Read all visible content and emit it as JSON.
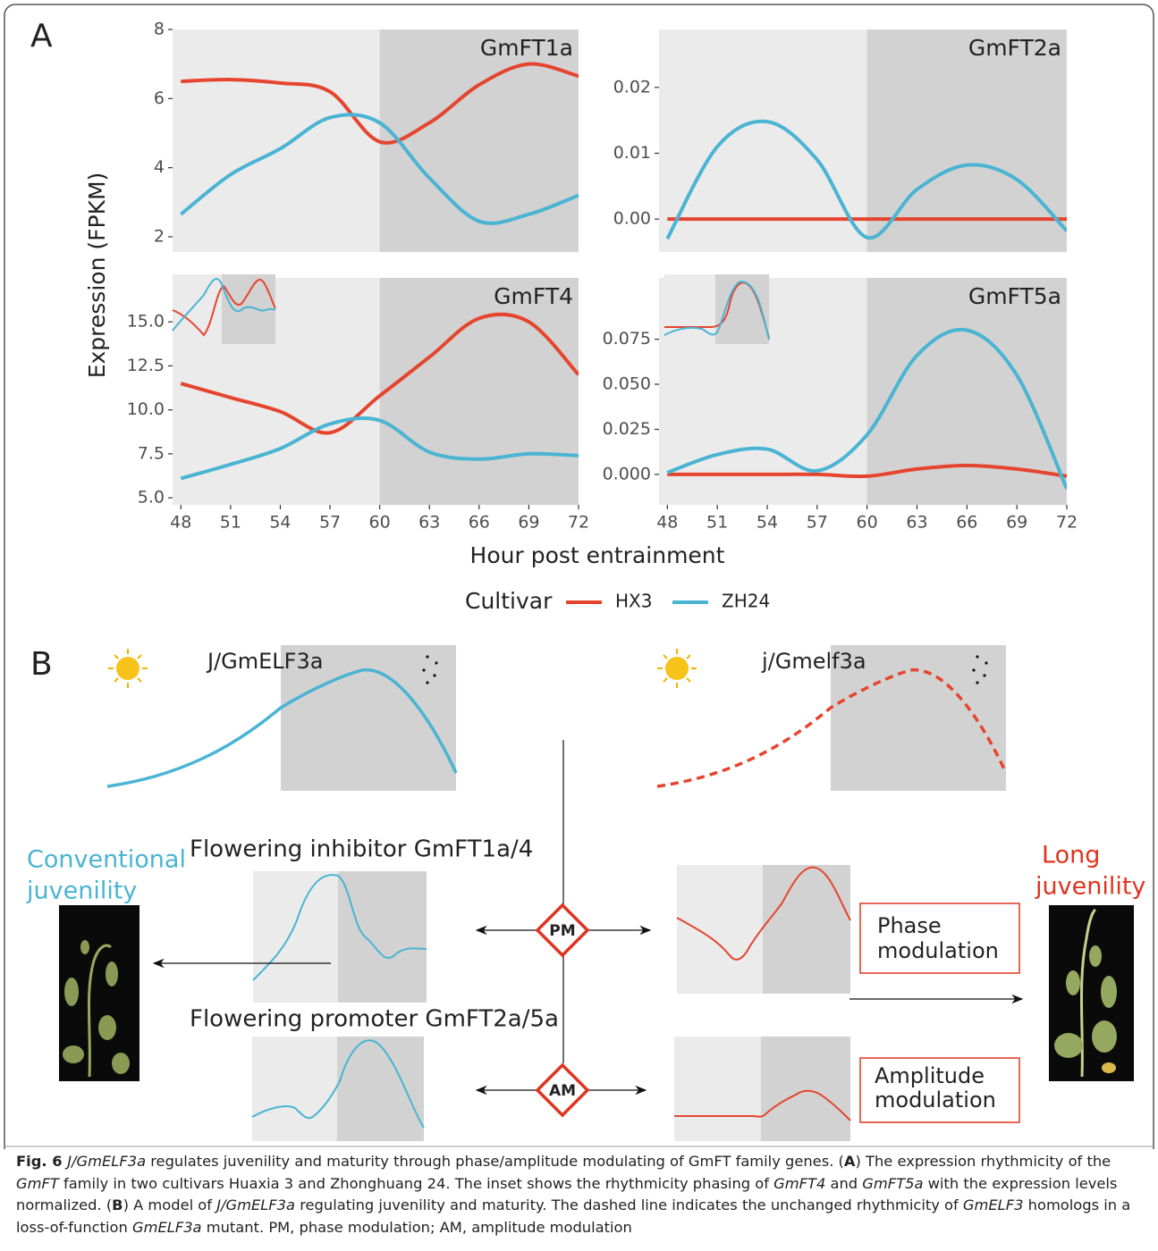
{
  "panel_a": {
    "label": "A",
    "y_label": "Expression (FPKM)",
    "x_label": "Hour post entrainment",
    "legend_title": "Cultivar"
  },
  "chart_data": [
    {
      "type": "line",
      "title": "GmFT1a",
      "x": [
        48,
        51,
        54,
        57,
        60,
        63,
        66,
        69,
        72
      ],
      "xlim": [
        47.5,
        72
      ],
      "xticks": [
        48,
        51,
        54,
        57,
        60,
        63,
        66,
        69,
        72
      ],
      "ylim": [
        1.56,
        8
      ],
      "yticks": [
        2,
        4,
        6,
        8
      ],
      "dark_band": [
        60,
        72
      ],
      "series": [
        {
          "name": "HX3",
          "color": "#e5452f",
          "values": [
            6.5,
            6.55,
            6.45,
            6.2,
            4.75,
            5.3,
            6.4,
            7.0,
            6.65
          ]
        },
        {
          "name": "ZH24",
          "color": "#4ab4d3",
          "values": [
            2.65,
            3.8,
            4.55,
            5.45,
            5.3,
            3.7,
            2.45,
            2.65,
            3.2
          ]
        }
      ]
    },
    {
      "type": "line",
      "title": "GmFT2a",
      "x": [
        48,
        51,
        54,
        57,
        60,
        63,
        66,
        69,
        72
      ],
      "xlim": [
        47.5,
        72
      ],
      "xticks": [
        48,
        51,
        54,
        57,
        60,
        63,
        66,
        69,
        72
      ],
      "ylim": [
        -0.005,
        0.0288
      ],
      "yticks": [
        {
          "value": 0,
          "label": "0.00"
        },
        0.01,
        0.02
      ],
      "dark_band": [
        60,
        72
      ],
      "series": [
        {
          "name": "HX3",
          "color": "#e5452f",
          "values": [
            0,
            0,
            0,
            0,
            0,
            0,
            0,
            0,
            0
          ]
        },
        {
          "name": "ZH24",
          "color": "#4ab4d3",
          "values": [
            -0.003,
            0.011,
            0.0148,
            0.009,
            -0.0028,
            0.0045,
            0.0082,
            0.006,
            -0.0018
          ]
        }
      ]
    },
    {
      "type": "line",
      "title": "GmFT4",
      "x": [
        48,
        51,
        54,
        57,
        60,
        63,
        66,
        69,
        72
      ],
      "xlim": [
        47.5,
        72
      ],
      "xticks": [
        48,
        51,
        54,
        57,
        60,
        63,
        66,
        69,
        72
      ],
      "ylim": [
        4.6,
        17.5
      ],
      "yticks": [
        {
          "value": 5,
          "label": "5.0"
        },
        7.5,
        {
          "value": 10,
          "label": "10.0"
        },
        12.5,
        {
          "value": 15,
          "label": "15.0"
        }
      ],
      "dark_band": [
        60,
        72
      ],
      "series": [
        {
          "name": "HX3",
          "color": "#e5452f",
          "values": [
            11.5,
            10.7,
            9.9,
            8.7,
            10.8,
            13.0,
            15.2,
            15.0,
            12.0
          ]
        },
        {
          "name": "ZH24",
          "color": "#4ab4d3",
          "values": [
            6.1,
            6.9,
            7.8,
            9.2,
            9.4,
            7.6,
            7.2,
            7.5,
            7.4
          ]
        }
      ]
    },
    {
      "type": "line",
      "title": "GmFT5a",
      "x": [
        48,
        51,
        54,
        57,
        60,
        63,
        66,
        69,
        72
      ],
      "xlim": [
        47.5,
        72
      ],
      "xticks": [
        48,
        51,
        54,
        57,
        60,
        63,
        66,
        69,
        72
      ],
      "ylim": [
        -0.0169,
        0.109
      ],
      "yticks": [
        {
          "value": 0,
          "label": "0.000"
        },
        0.025,
        {
          "value": 0.05,
          "label": "0.050"
        },
        0.075
      ],
      "dark_band": [
        60,
        72
      ],
      "series": [
        {
          "name": "HX3",
          "color": "#e5452f",
          "values": [
            0,
            0,
            0,
            0,
            -0.001,
            0.003,
            0.005,
            0.003,
            -0.001
          ]
        },
        {
          "name": "ZH24",
          "color": "#4ab4d3",
          "values": [
            0.001,
            0.011,
            0.014,
            0.002,
            0.022,
            0.066,
            0.08,
            0.055,
            -0.008
          ]
        }
      ]
    }
  ],
  "panel_b": {
    "label": "B",
    "wild_type": "J/GmELF3a",
    "mutant": "j/Gmelf3a",
    "left_outcome": [
      "Conventional",
      "juvenility"
    ],
    "right_outcome": [
      "Long",
      "juvenility"
    ],
    "inhibitor": "Flowering inhibitor GmFT1a/4",
    "promoter": "Flowering promoter GmFT2a/5a",
    "pm": "PM",
    "am": "AM",
    "phase_box": [
      "Phase",
      "modulation"
    ],
    "amplitude_box": [
      "Amplitude",
      "modulation"
    ]
  },
  "caption": [
    {
      "text": "Fig. 6 ",
      "style": "bold"
    },
    {
      "text": "J/GmELF3a",
      "style": "italic"
    },
    {
      "text": " regulates juvenility and maturity through phase/amplitude modulating of GmFT family genes. (",
      "style": "normal"
    },
    {
      "text": "A",
      "style": "bold"
    },
    {
      "text": ") The expression rhythmicity of the ",
      "style": "normal"
    },
    {
      "text": "GmFT",
      "style": "italic"
    },
    {
      "text": " family in two cultivars Huaxia 3 and Zhonghuang 24. The inset shows the rhythmicity phasing of ",
      "style": "normal"
    },
    {
      "text": "GmFT4",
      "style": "italic"
    },
    {
      "text": " and ",
      "style": "normal"
    },
    {
      "text": "GmFT5a",
      "style": "italic"
    },
    {
      "text": " with the expression levels normalized. (",
      "style": "normal"
    },
    {
      "text": "B",
      "style": "bold"
    },
    {
      "text": ") A model of ",
      "style": "normal"
    },
    {
      "text": "J/GmELF3a",
      "style": "italic"
    },
    {
      "text": " regulating juvenility and maturity. The dashed line indicates the unchanged rhythmicity of ",
      "style": "normal"
    },
    {
      "text": "GmELF3",
      "style": "italic"
    },
    {
      "text": " homologs in a loss-of-function ",
      "style": "normal"
    },
    {
      "text": "GmELF3a",
      "style": "italic"
    },
    {
      "text": " mutant. PM, phase modulation; AM, amplitude modulation",
      "style": "normal"
    }
  ]
}
